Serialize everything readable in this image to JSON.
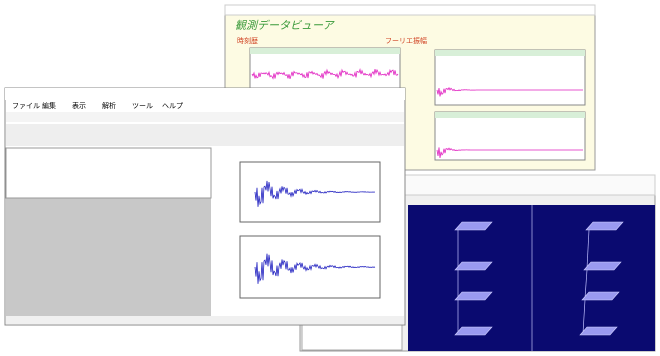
{
  "viewer": {
    "title": "観測データビューア",
    "labels": [
      "時刻歴",
      "フーリエ振幅"
    ]
  },
  "main": {
    "menu": [
      "ファイル",
      "編集",
      "表示",
      "解析",
      "ツール",
      "ヘルプ"
    ]
  }
}
